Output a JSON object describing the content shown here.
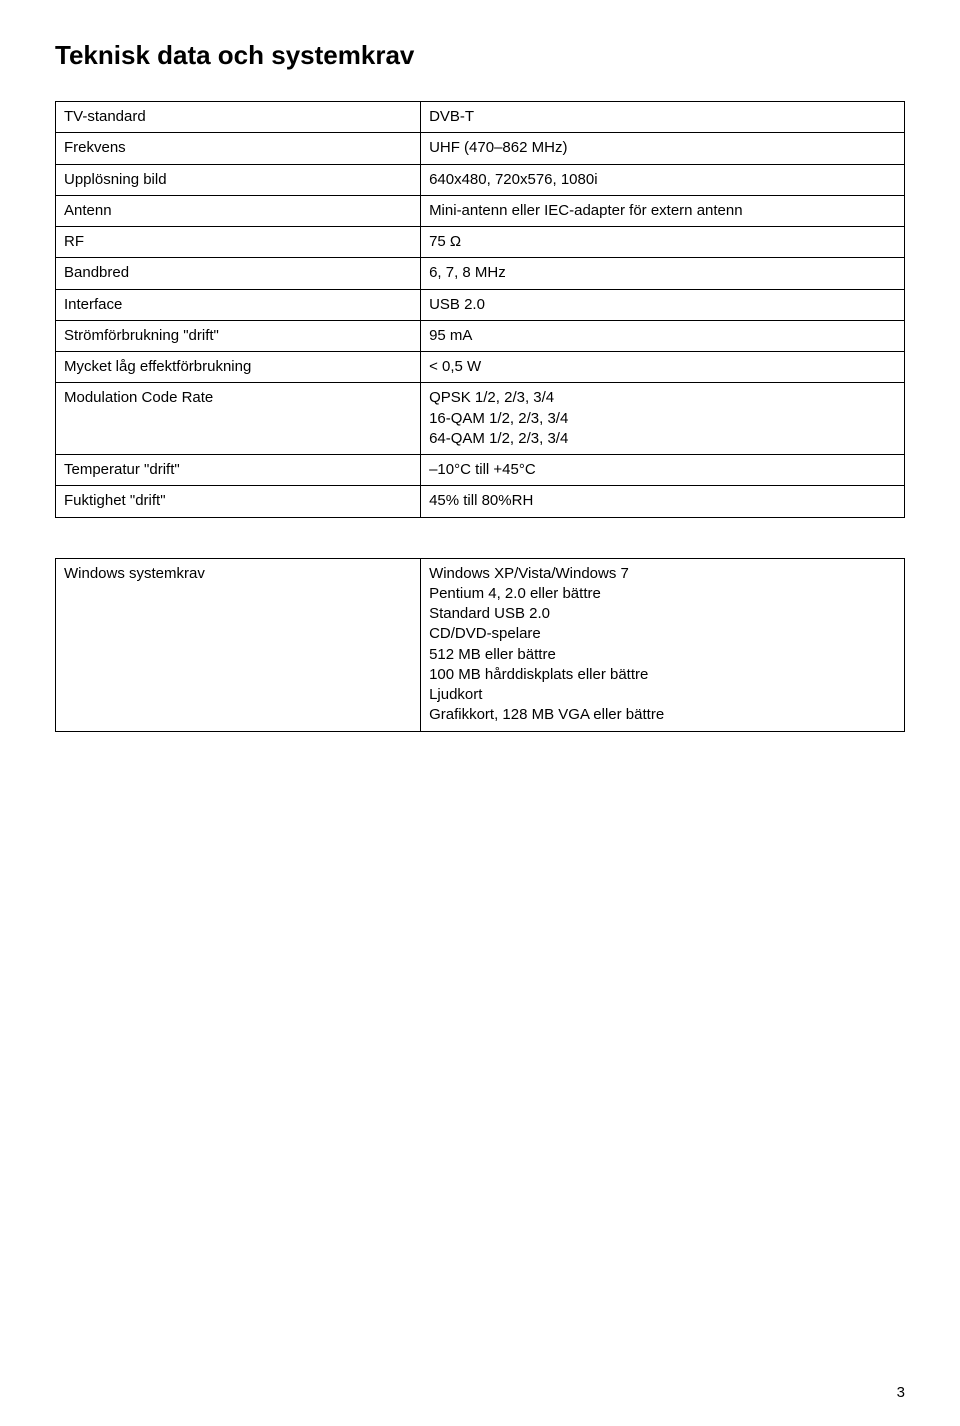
{
  "page": {
    "title": "Teknisk data och systemkrav",
    "number": "3"
  },
  "specTable": {
    "rows": [
      {
        "label": "TV-standard",
        "value": "DVB-T"
      },
      {
        "label": "Frekvens",
        "value": "UHF (470–862 MHz)"
      },
      {
        "label": "Upplösning bild",
        "value": "640x480, 720x576, 1080i"
      },
      {
        "label": "Antenn",
        "value": "Mini-antenn eller IEC-adapter för extern antenn"
      },
      {
        "label": "RF",
        "value": "75 Ω"
      },
      {
        "label": "Bandbred",
        "value": "6, 7, 8 MHz"
      },
      {
        "label": "Interface",
        "value": "USB 2.0"
      },
      {
        "label": "Strömförbrukning \"drift\"",
        "value": "95 mA"
      },
      {
        "label": "Mycket låg effektförbrukning",
        "value": "< 0,5 W"
      },
      {
        "label": "Modulation Code Rate",
        "value": "QPSK 1/2, 2/3, 3/4\n16-QAM 1/2, 2/3, 3/4\n64-QAM 1/2, 2/3, 3/4"
      },
      {
        "label": "Temperatur \"drift\"",
        "value": "–10°C till  +45°C"
      },
      {
        "label": "Fuktighet \"drift\"",
        "value": "45% till  80%RH"
      }
    ]
  },
  "reqTable": {
    "rows": [
      {
        "label": "Windows systemkrav",
        "value": "Windows XP/Vista/Windows 7\nPentium 4, 2.0 eller bättre\nStandard USB 2.0\nCD/DVD-spelare\n512 MB eller bättre\n100 MB hårddiskplats eller bättre\nLjudkort\nGrafikkort, 128 MB VGA eller bättre"
      }
    ]
  },
  "style": {
    "background_color": "#ffffff",
    "text_color": "#000000",
    "border_color": "#000000",
    "heading_fontsize": 26,
    "body_fontsize": 15,
    "col1_width_pct": 43
  }
}
